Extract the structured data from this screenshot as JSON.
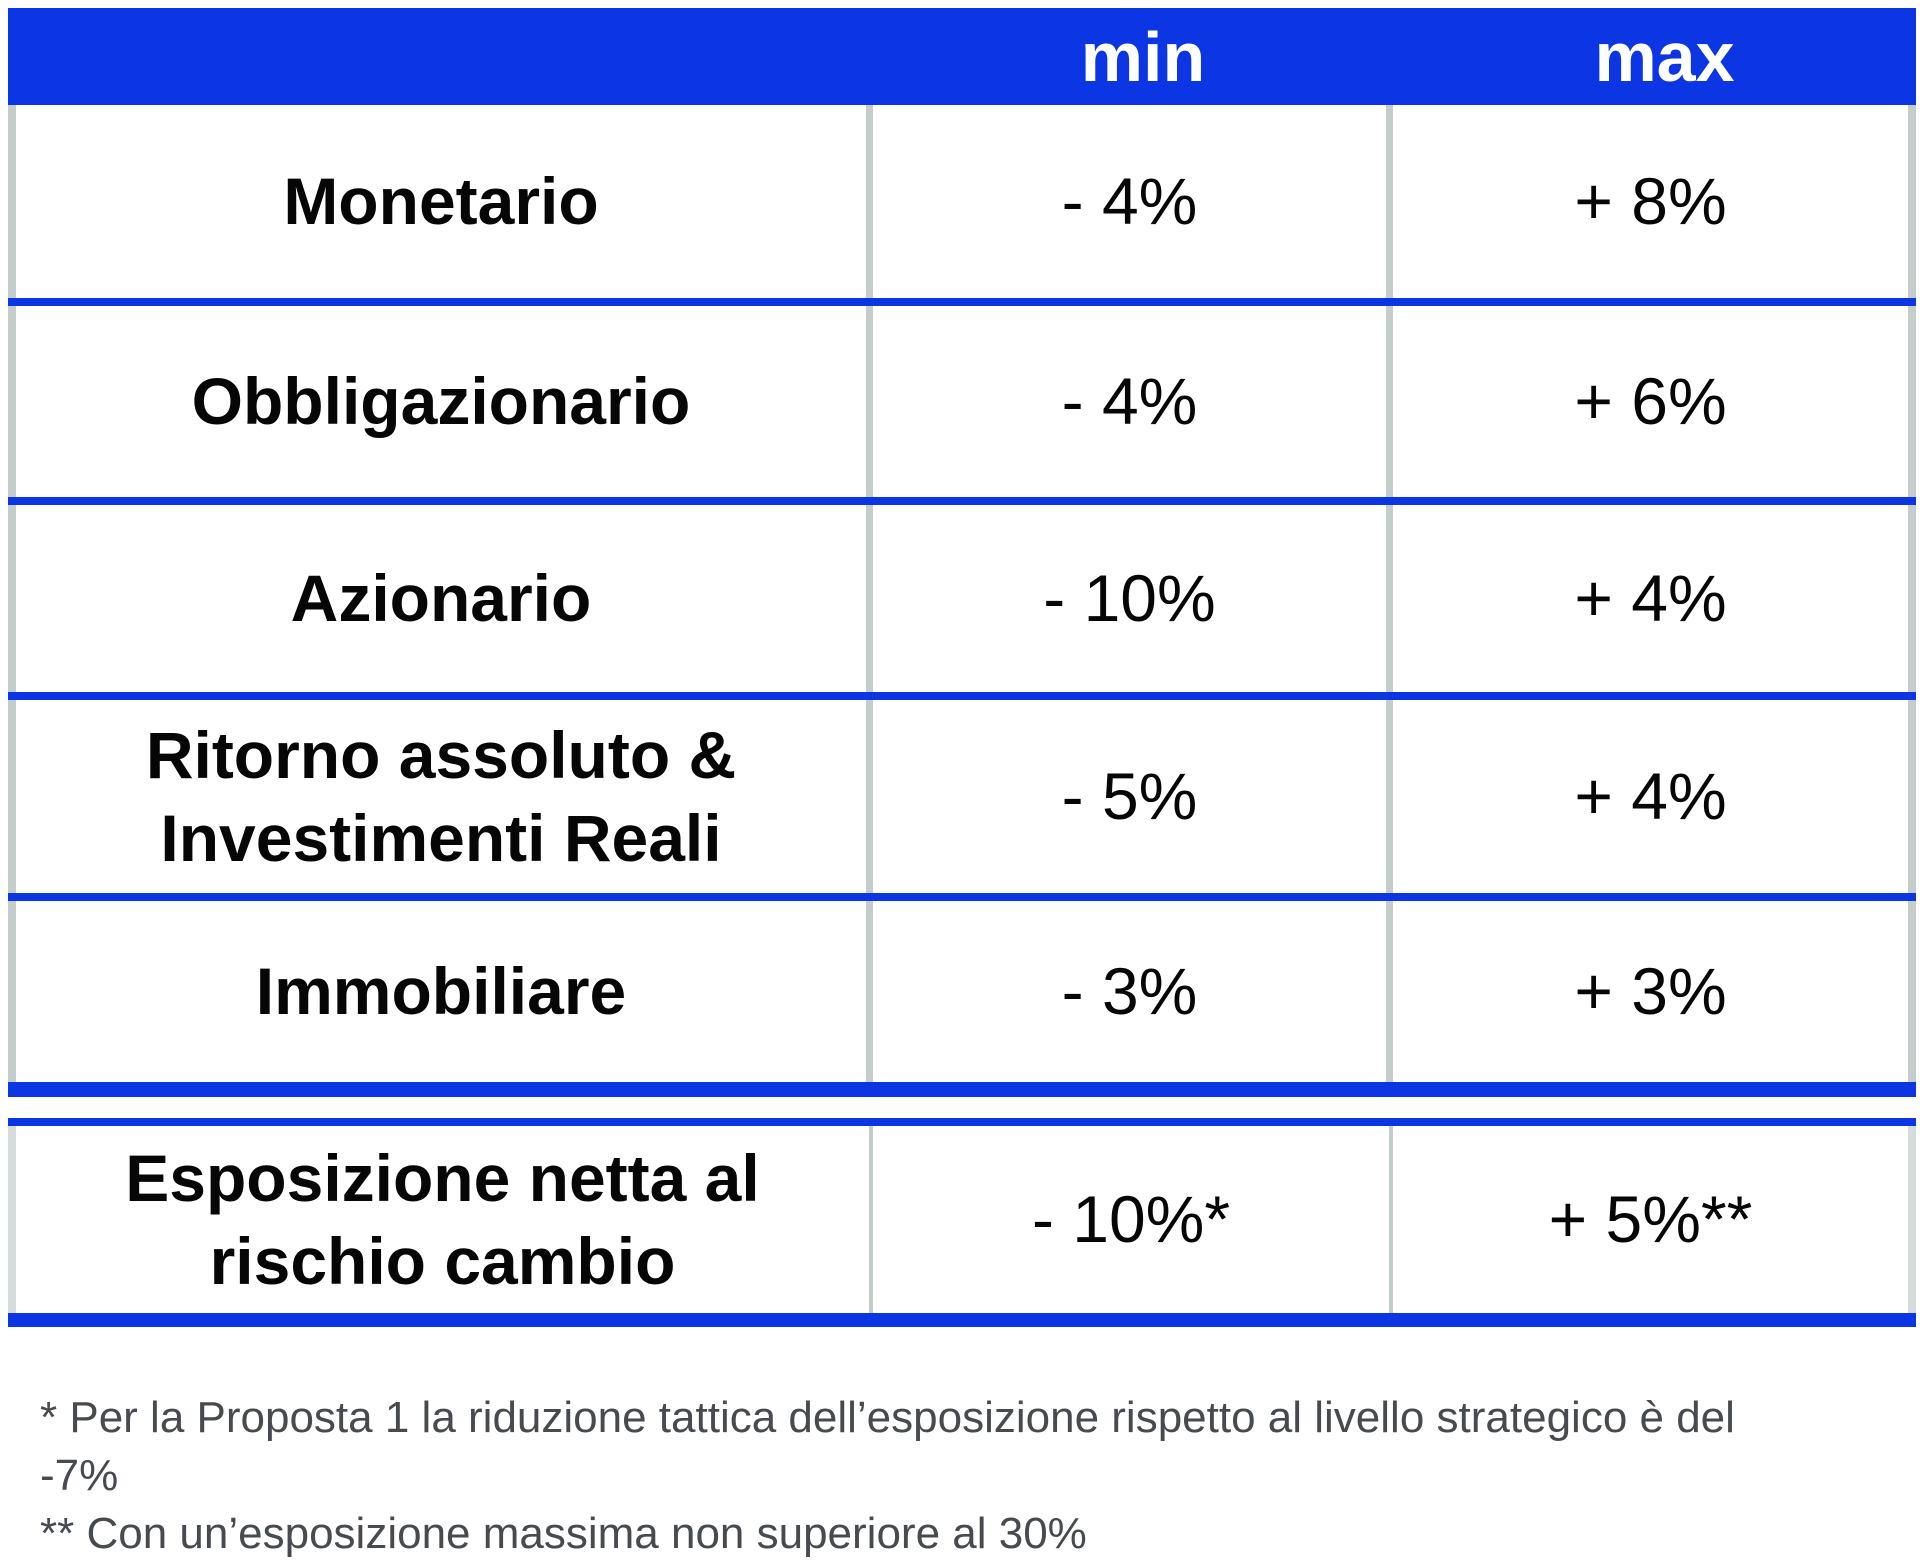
{
  "table": {
    "header": {
      "label": "",
      "min": "min",
      "max": "max"
    },
    "rows": [
      {
        "label": "Monetario",
        "min": "- 4%",
        "max": "+ 8%"
      },
      {
        "label": "Obbligazionario",
        "min": "- 4%",
        "max": "+ 6%"
      },
      {
        "label": "Azionario",
        "min": "- 10%",
        "max": "+ 4%"
      },
      {
        "label": "Ritorno assoluto & Investimenti Reali",
        "min": "- 5%",
        "max": "+ 4%"
      },
      {
        "label": "Immobiliare",
        "min": "- 3%",
        "max": "+ 3%"
      }
    ],
    "exposure_row": {
      "label": "Esposizione netta al rischio cambio",
      "min": "- 10%*",
      "max": "+ 5%**"
    }
  },
  "footnotes": [
    "* Per la Proposta 1 la riduzione tattica dell’esposizione rispetto al livello strategico è del -7%",
    "** Con un’esposizione massima non superiore al 30%"
  ],
  "colors": {
    "header_blue": "#0c36e4",
    "border_gray": "#c5cccc",
    "header_text": "#ffffff",
    "cell_text": "#060606",
    "footnote_text": "#474b4f"
  }
}
